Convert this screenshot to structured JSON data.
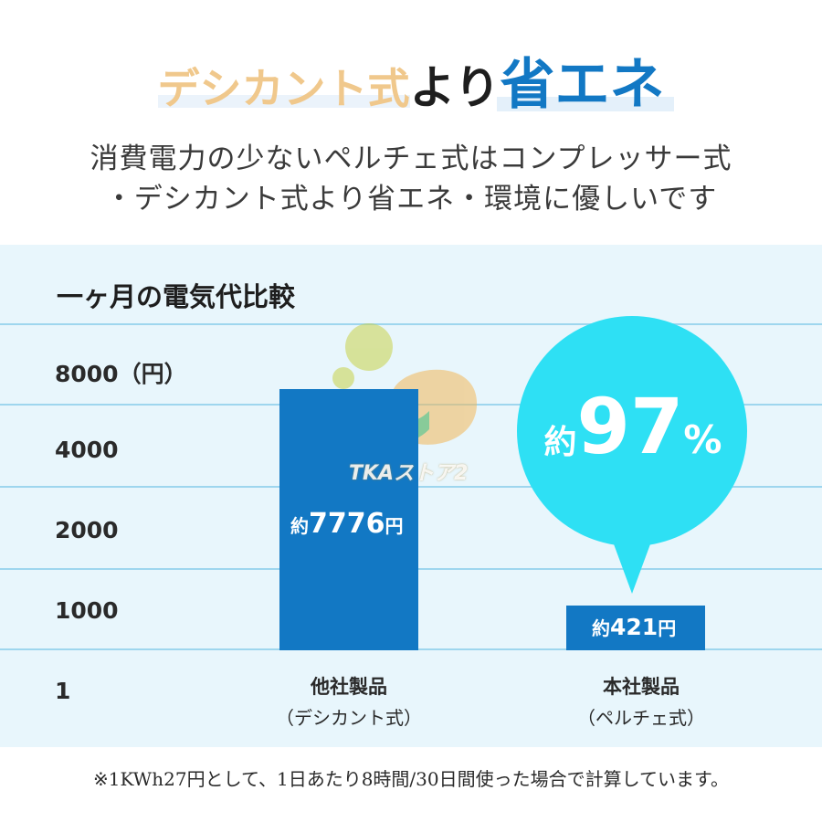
{
  "headline": {
    "part1": "デシカント式",
    "part2": "より",
    "part3": "省エネ"
  },
  "subtitle": {
    "line1": "消費電力の少ないペルチェ式はコンプレッサー式",
    "line2": "・デシカント式より省エネ・環境に優しいです"
  },
  "panel_title": "一ヶ月の電気代比較",
  "bubble": {
    "prefix": "約",
    "value": "97",
    "unit": "%"
  },
  "watermark": "TKAストア2",
  "footnote": "※1KWh27円として、1日あたり8時間/30日間使った場合で計算しています。",
  "colors": {
    "bar": "#1278c4",
    "bubble": "#2ee0f4",
    "panel": "#e8f6fc",
    "gridline": "#9ed6ee",
    "accent_gold": "#f0c88c"
  },
  "chart_data": {
    "type": "bar",
    "title": "一ヶ月の電気代比較",
    "y_axis": {
      "scale": "non-linear",
      "ticks": [
        "8000（円）",
        "4000",
        "2000",
        "1000",
        "1"
      ],
      "tick_values": [
        8000,
        4000,
        2000,
        1000,
        1
      ]
    },
    "categories": [
      {
        "name": "他社製品",
        "sub": "（デシカント式）"
      },
      {
        "name": "本社製品",
        "sub": "（ペルチェ式）"
      }
    ],
    "values": [
      7776,
      421
    ],
    "value_labels": [
      {
        "prefix": "約",
        "number": "7776",
        "unit": "円"
      },
      {
        "prefix": "約",
        "number": "421",
        "unit": "円"
      }
    ],
    "annotation": "約97%",
    "grid": true,
    "legend": "none"
  }
}
